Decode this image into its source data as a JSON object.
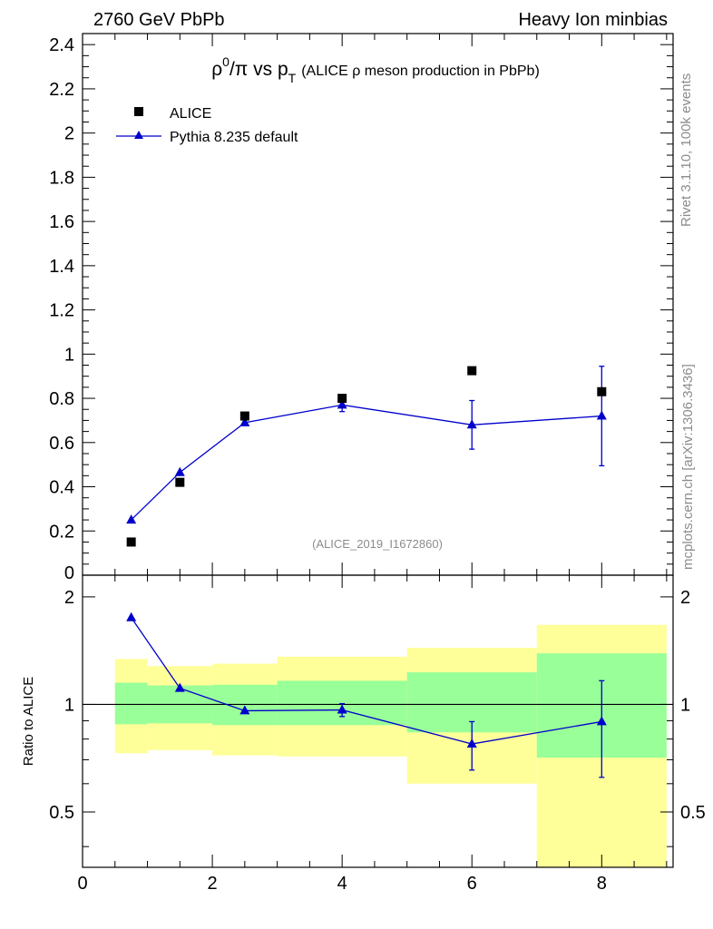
{
  "header": {
    "left": "2760 GeV PbPb",
    "right": "Heavy Ion minbias"
  },
  "title": {
    "rho": "ρ",
    "sup": "0",
    "over_pi": "/π vs p",
    "sub": "T",
    "detail": "(ALICE ρ meson production in PbPb)"
  },
  "side_labels": {
    "rivet": "Rivet 3.1.10,  100k events",
    "mcplots": "mcplots.cern.ch [arXiv:1306.3436]"
  },
  "analysis_id": "(ALICE_2019_I1672860)",
  "ratio_ylabel": "Ratio to ALICE",
  "legend": {
    "alice": "ALICE",
    "pythia": "Pythia 8.235 default"
  },
  "colors": {
    "data": "#000000",
    "mc": "#0000cc",
    "band_inner": "#99ff99",
    "band_outer": "#ffff99"
  },
  "chart_data": [
    {
      "type": "scatter",
      "panel": "main",
      "xlim": [
        0,
        9.1
      ],
      "ylim": [
        0,
        2.45
      ],
      "yticks": [
        "0.2",
        "0.4",
        "0.6",
        "0.8",
        "1",
        "1.2",
        "1.4",
        "1.6",
        "1.8",
        "2",
        "2.2",
        "2.4"
      ],
      "ytick_values": [
        0.2,
        0.4,
        0.6,
        0.8,
        1,
        1.2,
        1.4,
        1.6,
        1.8,
        2,
        2.2,
        2.4
      ],
      "bottom_tick_label": "0",
      "series": [
        {
          "name": "ALICE",
          "marker": "square",
          "x": [
            0.75,
            1.5,
            2.5,
            4,
            6,
            8
          ],
          "y": [
            0.15,
            0.42,
            0.72,
            0.8,
            0.925,
            0.83
          ]
        },
        {
          "name": "Pythia 8.235 default",
          "marker": "triangle",
          "x": [
            0.75,
            1.5,
            2.5,
            4,
            6,
            8
          ],
          "y": [
            0.25,
            0.465,
            0.69,
            0.77,
            0.68,
            0.72
          ],
          "err": [
            0.006,
            0.006,
            0.01,
            0.03,
            0.11,
            0.225
          ]
        }
      ]
    },
    {
      "type": "line",
      "panel": "ratio",
      "xlim": [
        0,
        9.1
      ],
      "ylim": [
        0.35,
        2.3
      ],
      "yticks": [
        "0.5",
        "1",
        "2"
      ],
      "ytick_values": [
        0.5,
        1,
        2
      ],
      "xticks": [
        "0",
        "2",
        "4",
        "6",
        "8"
      ],
      "xtick_values": [
        0,
        2,
        4,
        6,
        8
      ],
      "reference_line": 1,
      "bands": [
        {
          "x0": 0.5,
          "x1": 1,
          "inner": [
            0.88,
            1.15
          ],
          "outer": [
            0.73,
            1.34
          ]
        },
        {
          "x0": 1,
          "x1": 2,
          "inner": [
            0.885,
            1.13
          ],
          "outer": [
            0.745,
            1.28
          ]
        },
        {
          "x0": 2,
          "x1": 3,
          "inner": [
            0.875,
            1.135
          ],
          "outer": [
            0.72,
            1.3
          ]
        },
        {
          "x0": 3,
          "x1": 5,
          "inner": [
            0.875,
            1.165
          ],
          "outer": [
            0.715,
            1.36
          ]
        },
        {
          "x0": 5,
          "x1": 7,
          "inner": [
            0.835,
            1.23
          ],
          "outer": [
            0.6,
            1.44
          ]
        },
        {
          "x0": 7,
          "x1": 9,
          "inner": [
            0.71,
            1.39
          ],
          "outer": [
            0.35,
            1.67
          ]
        }
      ],
      "series": [
        {
          "name": "Pythia 8.235 default",
          "marker": "triangle",
          "x": [
            0.75,
            1.5,
            2.5,
            4,
            6,
            8
          ],
          "y": [
            1.75,
            1.11,
            0.96,
            0.965,
            0.775,
            0.895
          ],
          "err": [
            0.01,
            0.01,
            0.01,
            0.04,
            0.12,
            0.27
          ]
        }
      ]
    }
  ]
}
